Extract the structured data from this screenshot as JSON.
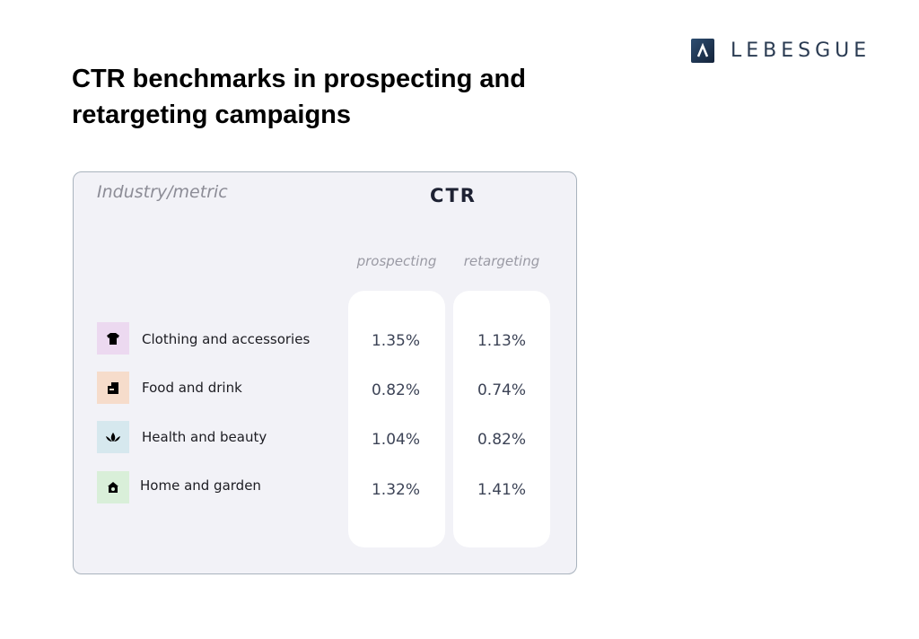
{
  "header": {
    "logo": "LEBESGUE",
    "title": "CTR benchmarks in prospecting and retargeting campaigns"
  },
  "table": {
    "corner": "Industry/metric",
    "metric": "CTR",
    "columns": [
      "prospecting",
      "retargeting"
    ],
    "rows": [
      {
        "label": "Clothing and accessories",
        "values": [
          "1.35%",
          "1.13%"
        ]
      },
      {
        "label": "Food and drink",
        "values": [
          "0.82%",
          "0.74%"
        ]
      },
      {
        "label": "Health and beauty",
        "values": [
          "1.04%",
          "0.82%"
        ]
      },
      {
        "label": "Home and garden",
        "values": [
          "1.32%",
          "1.41%"
        ]
      }
    ]
  }
}
